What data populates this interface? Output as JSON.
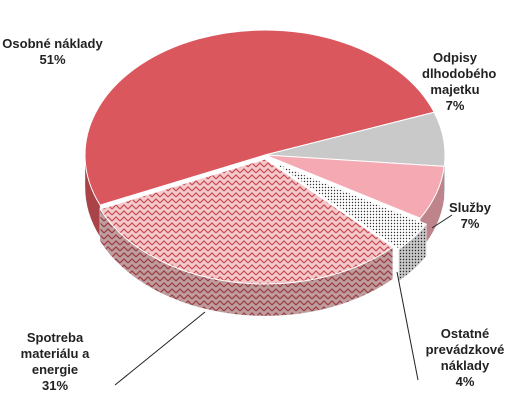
{
  "chart_data": {
    "type": "pie3d",
    "categories": [
      "Osobné náklady",
      "Odpisy dlhodobého majetku",
      "Služby",
      "Ostatné prevádzkové náklady",
      "Spotreba materiálu a energie"
    ],
    "values": [
      51,
      7,
      7,
      4,
      31
    ],
    "value_labels": [
      "51%",
      "7%",
      "7%",
      "4%",
      "31%"
    ],
    "colors": [
      "#d9575d",
      "#c9c9c9",
      "#f5a9b3",
      "#ffffff",
      "#e58a8e"
    ]
  }
}
